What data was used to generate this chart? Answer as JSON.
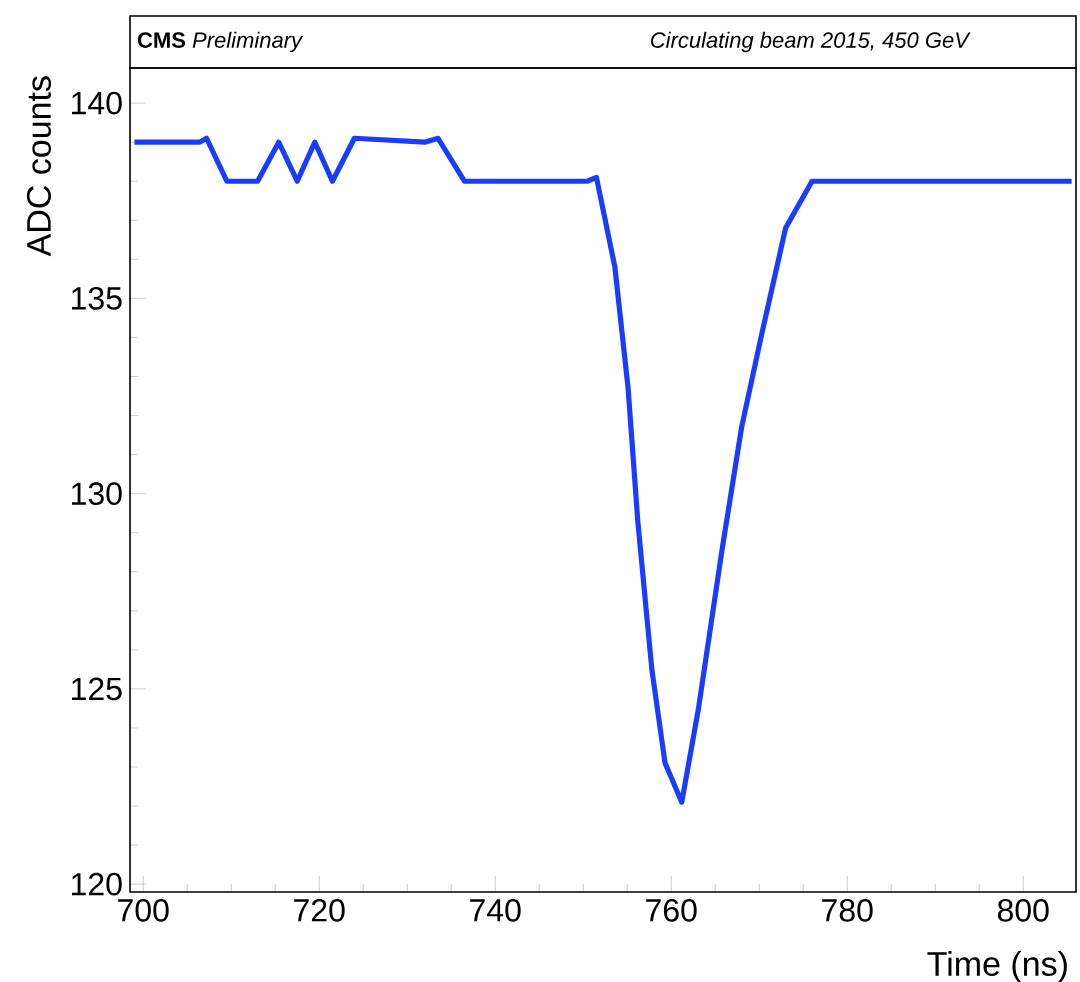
{
  "chart_data": {
    "type": "line",
    "title": "**CMS** *Preliminary*",
    "subtitle": "Circulating beam 2015, 450 GeV",
    "xlabel": "Time (ns)",
    "ylabel": "ADC counts",
    "xlim": [
      698.5,
      806
    ],
    "ylim": [
      119.8,
      140.9
    ],
    "xticks": [
      700,
      720,
      740,
      760,
      780,
      800
    ],
    "yticks": [
      120,
      125,
      130,
      135,
      140
    ],
    "series": [
      {
        "color": "#1a3cff",
        "x": [
          699,
          706.4,
          707.2,
          709.5,
          713,
          715.4,
          717.5,
          719.5,
          721.5,
          724,
          732,
          733.5,
          736.5,
          750.5,
          751.5,
          753.6,
          755.1,
          756.2,
          757.8,
          759.3,
          761.2,
          763.1,
          765.8,
          768,
          770.3,
          773,
          776,
          805.5
        ],
        "values": [
          139,
          139,
          139.1,
          138,
          138,
          139,
          138,
          139,
          138,
          139.1,
          139,
          139.1,
          138,
          138,
          138.1,
          135.8,
          132.7,
          129.3,
          125.5,
          123.1,
          122.1,
          124.5,
          128.6,
          131.7,
          134.1,
          136.8,
          138,
          138
        ]
      }
    ],
    "grid": false,
    "marker": "none",
    "line_style": "solid"
  }
}
